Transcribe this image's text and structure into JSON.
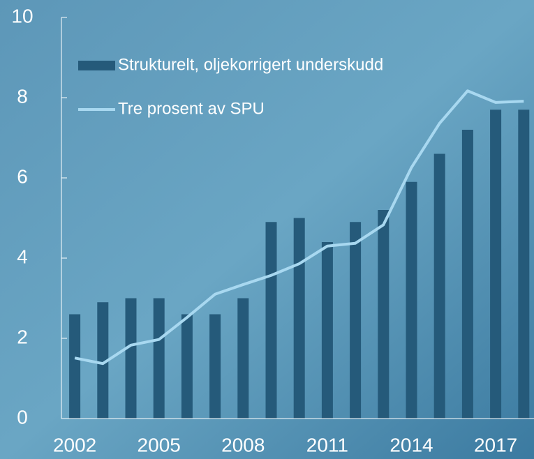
{
  "chart_data": {
    "type": "bar",
    "categories": [
      "2002",
      null,
      null,
      "2005",
      null,
      null,
      "2008",
      null,
      null,
      "2011",
      null,
      null,
      "2014",
      null,
      null,
      "2017",
      null
    ],
    "series": [
      {
        "name": "Strukturelt, oljekorrigert underskudd",
        "type": "bar",
        "color": "#255a7a",
        "values": [
          2.6,
          2.9,
          3.0,
          3.0,
          2.6,
          2.6,
          3.0,
          4.9,
          5.0,
          4.4,
          4.9,
          5.2,
          5.9,
          6.6,
          7.2,
          7.7,
          7.7
        ]
      },
      {
        "name": "Tre prosent av SPU",
        "type": "line",
        "color": "#a8d8f0",
        "values": [
          1.51,
          1.37,
          1.83,
          1.97,
          2.52,
          3.1,
          3.34,
          3.57,
          3.86,
          4.3,
          4.37,
          4.83,
          6.26,
          7.36,
          8.17,
          7.88,
          7.91
        ]
      }
    ],
    "ylim": [
      0,
      10
    ],
    "yticks": [
      0,
      2,
      4,
      6,
      8,
      10
    ],
    "legend": "upper left"
  }
}
